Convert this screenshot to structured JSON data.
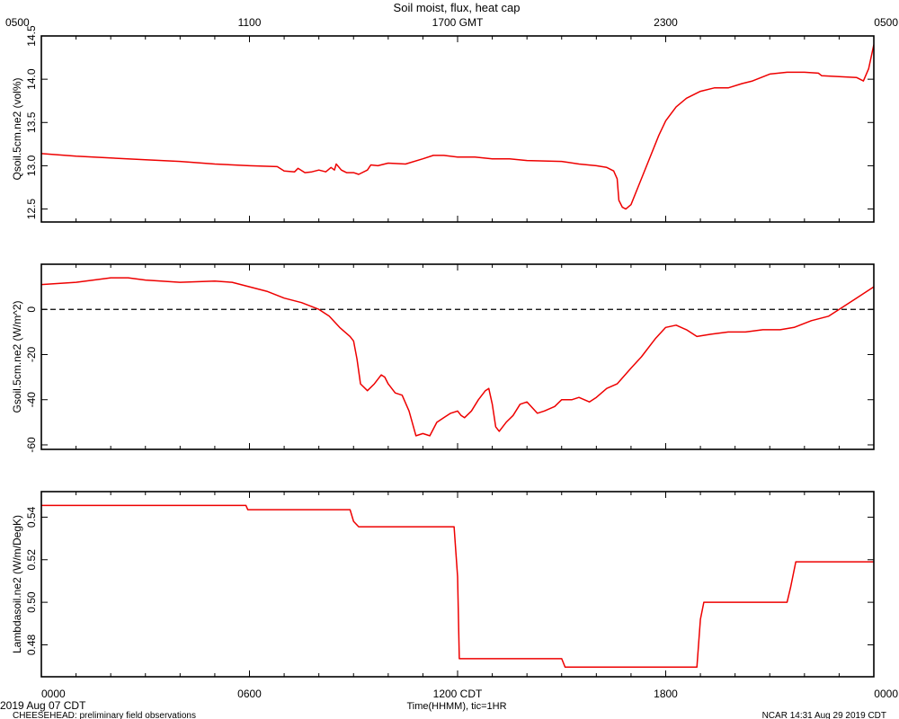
{
  "title": "Soil moist, flux, heat cap",
  "colors": {
    "series": "#ee0000",
    "axis": "#000000"
  },
  "top_axis": {
    "labels": [
      "0500",
      "1100",
      "1700 GMT",
      "2300",
      "0500"
    ],
    "positions_hours": [
      0,
      6,
      12,
      18,
      24
    ]
  },
  "bottom_axis": {
    "labels": [
      "0000",
      "0600",
      "1200 CDT",
      "1800",
      "0000"
    ],
    "positions_hours": [
      0,
      6,
      12,
      18,
      24
    ],
    "xlabel": "Time(HHMM), tic=1HR"
  },
  "footer": {
    "date": "2019 Aug 07 CDT",
    "project": "CHEESEHEAD: preliminary field observations",
    "credit": "NCAR 14:31 Aug 29 2019 CDT"
  },
  "chart_data": [
    {
      "type": "line",
      "ylabel": "Qsoil.5cm.ne2 (vol%)",
      "ylim": [
        12.35,
        14.5
      ],
      "yticks": [
        12.5,
        13.0,
        13.5,
        14.0,
        14.5
      ],
      "ytick_labels": [
        "12.5",
        "13.0",
        "13.5",
        "14.0",
        "14.5"
      ],
      "xlim": [
        0,
        24
      ],
      "series": [
        {
          "values": [
            [
              0,
              13.14
            ],
            [
              1,
              13.11
            ],
            [
              2,
              13.09
            ],
            [
              3,
              13.07
            ],
            [
              4,
              13.05
            ],
            [
              5,
              13.02
            ],
            [
              6,
              13.0
            ],
            [
              6.8,
              12.99
            ],
            [
              7.0,
              12.94
            ],
            [
              7.3,
              12.93
            ],
            [
              7.4,
              12.97
            ],
            [
              7.6,
              12.92
            ],
            [
              7.8,
              12.93
            ],
            [
              8.0,
              12.95
            ],
            [
              8.2,
              12.93
            ],
            [
              8.35,
              12.98
            ],
            [
              8.45,
              12.95
            ],
            [
              8.5,
              13.02
            ],
            [
              8.65,
              12.95
            ],
            [
              8.8,
              12.92
            ],
            [
              9.0,
              12.92
            ],
            [
              9.15,
              12.9
            ],
            [
              9.4,
              12.95
            ],
            [
              9.5,
              13.01
            ],
            [
              9.7,
              13.0
            ],
            [
              10.0,
              13.03
            ],
            [
              10.5,
              13.02
            ],
            [
              11.0,
              13.08
            ],
            [
              11.3,
              13.12
            ],
            [
              11.6,
              13.12
            ],
            [
              12.0,
              13.1
            ],
            [
              12.5,
              13.1
            ],
            [
              13.0,
              13.08
            ],
            [
              13.5,
              13.08
            ],
            [
              14.0,
              13.06
            ],
            [
              15.0,
              13.05
            ],
            [
              15.5,
              13.02
            ],
            [
              16.0,
              13.0
            ],
            [
              16.3,
              12.98
            ],
            [
              16.5,
              12.94
            ],
            [
              16.6,
              12.85
            ],
            [
              16.65,
              12.6
            ],
            [
              16.75,
              12.52
            ],
            [
              16.85,
              12.5
            ],
            [
              17.0,
              12.55
            ],
            [
              17.2,
              12.75
            ],
            [
              17.5,
              13.05
            ],
            [
              17.8,
              13.35
            ],
            [
              18.0,
              13.52
            ],
            [
              18.3,
              13.68
            ],
            [
              18.6,
              13.78
            ],
            [
              19.0,
              13.86
            ],
            [
              19.4,
              13.9
            ],
            [
              19.8,
              13.9
            ],
            [
              20.2,
              13.95
            ],
            [
              20.5,
              13.98
            ],
            [
              21.0,
              14.06
            ],
            [
              21.5,
              14.08
            ],
            [
              22.0,
              14.08
            ],
            [
              22.4,
              14.07
            ],
            [
              22.5,
              14.04
            ],
            [
              23.0,
              14.03
            ],
            [
              23.5,
              14.02
            ],
            [
              23.7,
              13.98
            ],
            [
              23.85,
              14.12
            ],
            [
              24.0,
              14.4
            ]
          ]
        }
      ]
    },
    {
      "type": "line",
      "ylabel": "Gsoil.5cm.ne2 (W/m^2)",
      "ylim": [
        -62,
        20
      ],
      "yticks": [
        -60,
        -40,
        -20,
        0
      ],
      "ytick_labels": [
        "-60",
        "-40",
        "-20",
        "0"
      ],
      "xlim": [
        0,
        24
      ],
      "zero_line": true,
      "series": [
        {
          "values": [
            [
              0,
              11
            ],
            [
              1,
              12
            ],
            [
              2,
              14
            ],
            [
              2.5,
              14
            ],
            [
              3,
              13
            ],
            [
              4,
              12
            ],
            [
              5,
              12.5
            ],
            [
              5.5,
              12
            ],
            [
              6,
              10
            ],
            [
              6.5,
              8
            ],
            [
              7,
              5
            ],
            [
              7.5,
              3
            ],
            [
              8,
              0
            ],
            [
              8.3,
              -3
            ],
            [
              8.6,
              -8
            ],
            [
              8.9,
              -12
            ],
            [
              9.0,
              -14
            ],
            [
              9.1,
              -22
            ],
            [
              9.2,
              -33
            ],
            [
              9.4,
              -36
            ],
            [
              9.6,
              -33
            ],
            [
              9.8,
              -29
            ],
            [
              9.9,
              -30
            ],
            [
              10.0,
              -33
            ],
            [
              10.2,
              -37
            ],
            [
              10.4,
              -38
            ],
            [
              10.6,
              -45
            ],
            [
              10.8,
              -56
            ],
            [
              11.0,
              -55
            ],
            [
              11.2,
              -56
            ],
            [
              11.4,
              -50
            ],
            [
              11.6,
              -48
            ],
            [
              11.8,
              -46
            ],
            [
              12.0,
              -45
            ],
            [
              12.1,
              -47
            ],
            [
              12.2,
              -48
            ],
            [
              12.4,
              -45
            ],
            [
              12.6,
              -40
            ],
            [
              12.8,
              -36
            ],
            [
              12.9,
              -35
            ],
            [
              13.0,
              -42
            ],
            [
              13.1,
              -52
            ],
            [
              13.2,
              -54
            ],
            [
              13.4,
              -50
            ],
            [
              13.6,
              -47
            ],
            [
              13.8,
              -42
            ],
            [
              14.0,
              -41
            ],
            [
              14.3,
              -46
            ],
            [
              14.5,
              -45
            ],
            [
              14.8,
              -43
            ],
            [
              15.0,
              -40
            ],
            [
              15.3,
              -40
            ],
            [
              15.5,
              -39
            ],
            [
              15.8,
              -41
            ],
            [
              16.0,
              -39
            ],
            [
              16.3,
              -35
            ],
            [
              16.6,
              -33
            ],
            [
              17.0,
              -26
            ],
            [
              17.3,
              -21
            ],
            [
              17.7,
              -13
            ],
            [
              18.0,
              -8
            ],
            [
              18.3,
              -7
            ],
            [
              18.6,
              -9
            ],
            [
              18.9,
              -12
            ],
            [
              19.3,
              -11
            ],
            [
              19.8,
              -10
            ],
            [
              20.3,
              -10
            ],
            [
              20.8,
              -9
            ],
            [
              21.3,
              -9
            ],
            [
              21.7,
              -8
            ],
            [
              22.2,
              -5
            ],
            [
              22.7,
              -3
            ],
            [
              23.1,
              1
            ],
            [
              23.5,
              5
            ],
            [
              24,
              10
            ],
            [
              24.3,
              11
            ],
            [
              24.6,
              10
            ],
            [
              24.9,
              8
            ],
            [
              25.2,
              8
            ]
          ]
        }
      ]
    },
    {
      "type": "line",
      "ylabel": "Lambdasoil.ne2 (W/m/DegK)",
      "ylim": [
        0.465,
        0.552
      ],
      "yticks": [
        0.48,
        0.5,
        0.52,
        0.54
      ],
      "ytick_labels": [
        "0.48",
        "0.50",
        "0.52",
        "0.54"
      ],
      "xlim": [
        0,
        24
      ],
      "series": [
        {
          "values": [
            [
              0,
              0.5455
            ],
            [
              5.9,
              0.5455
            ],
            [
              5.95,
              0.5435
            ],
            [
              8.9,
              0.5435
            ],
            [
              9.0,
              0.538
            ],
            [
              9.15,
              0.5355
            ],
            [
              11.9,
              0.5355
            ],
            [
              12.0,
              0.512
            ],
            [
              12.05,
              0.4735
            ],
            [
              15.0,
              0.4735
            ],
            [
              15.1,
              0.4695
            ],
            [
              18.9,
              0.4695
            ],
            [
              19.0,
              0.492
            ],
            [
              19.1,
              0.5
            ],
            [
              21.5,
              0.5
            ],
            [
              21.6,
              0.507
            ],
            [
              21.75,
              0.519
            ],
            [
              24.0,
              0.519
            ],
            [
              25.1,
              0.519
            ]
          ]
        }
      ]
    }
  ]
}
